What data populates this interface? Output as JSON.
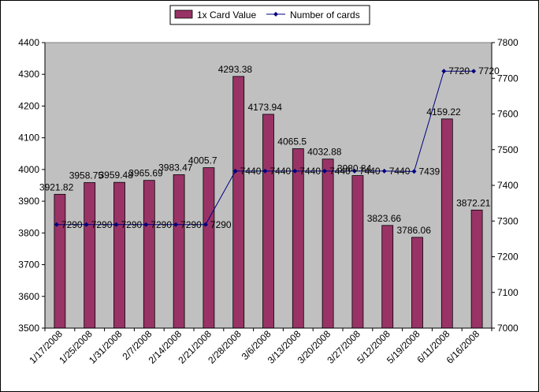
{
  "chart_data": {
    "type": "bar",
    "title": "",
    "xlabel": "",
    "ylabel": "",
    "y2label": "",
    "categories": [
      "1/17/2008",
      "1/25/2008",
      "1/31/2008",
      "2/7/2008",
      "2/14/2008",
      "2/21/2008",
      "2/28/2008",
      "3/6/2008",
      "3/13/2008",
      "3/20/2008",
      "3/27/2008",
      "5/12/2008",
      "5/19/2008",
      "6/11/2008",
      "6/16/2008"
    ],
    "series": [
      {
        "name": "1x Card Value",
        "type": "bar",
        "axis": "left",
        "color": "#993366",
        "values": [
          3921.82,
          3958.75,
          3959.48,
          3965.69,
          3983.47,
          4005.7,
          4293.38,
          4173.94,
          4065.5,
          4032.88,
          3980.84,
          3823.66,
          3786.06,
          4159.22,
          3872.21
        ],
        "labels": [
          "3921.82",
          "3958.75",
          "3959.48",
          "3965.69",
          "3983.47",
          "4005.7",
          "4293.38",
          "4173.94",
          "4065.5",
          "4032.88",
          "3980.84",
          "3823.66",
          "3786.06",
          "4159.22",
          "3872.21"
        ]
      },
      {
        "name": "Number of cards",
        "type": "line",
        "axis": "right",
        "color": "#000080",
        "values": [
          7290,
          7290,
          7290,
          7290,
          7290,
          7290,
          7440,
          7440,
          7440,
          7440,
          7440,
          7440,
          7439,
          7720,
          7720
        ],
        "labels": [
          "7290",
          "7290",
          "7290",
          "7290",
          "7290",
          "7290",
          "7440",
          "7440",
          "7440",
          "7440",
          "7440",
          "7440",
          "7439",
          "7720",
          "7720"
        ]
      }
    ],
    "ylim": [
      3500,
      4400
    ],
    "yticks": [
      "3500",
      "3600",
      "3700",
      "3800",
      "3900",
      "4000",
      "4100",
      "4200",
      "4300",
      "4400"
    ],
    "y2lim": [
      7000,
      7800
    ],
    "y2ticks": [
      "7000",
      "7100",
      "7200",
      "7300",
      "7400",
      "7500",
      "7600",
      "7700",
      "7800"
    ],
    "plot_background": "#c0c0c0",
    "grid": false,
    "legend_position": "top"
  }
}
